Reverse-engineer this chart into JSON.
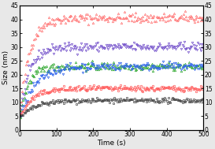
{
  "title": "",
  "xlabel": "Time (s)",
  "ylabel": "Size (nm)",
  "xlim": [
    0,
    500
  ],
  "ylim": [
    0,
    45
  ],
  "yticks": [
    0,
    5,
    10,
    15,
    20,
    25,
    30,
    35,
    40,
    45
  ],
  "xticks": [
    0,
    100,
    200,
    300,
    400,
    500
  ],
  "series": [
    {
      "color": "#FF7777",
      "marker": "^",
      "a": 36.0,
      "b": 0.04,
      "y0": 4.5,
      "noise": 0.9
    },
    {
      "color": "#7755CC",
      "marker": "v",
      "a": 26.0,
      "b": 0.04,
      "y0": 4.0,
      "noise": 0.8
    },
    {
      "color": "#33AA33",
      "marker": "^",
      "a": 19.0,
      "b": 0.045,
      "y0": 4.0,
      "noise": 0.7
    },
    {
      "color": "#3366EE",
      "marker": "v",
      "a": 19.5,
      "b": 0.025,
      "y0": 3.5,
      "noise": 0.7
    },
    {
      "color": "#FF5555",
      "marker": "o",
      "a": 10.5,
      "b": 0.03,
      "y0": 4.5,
      "noise": 0.5
    },
    {
      "color": "#444444",
      "marker": "s",
      "a": 6.5,
      "b": 0.025,
      "y0": 4.2,
      "noise": 0.4
    }
  ],
  "background_color": "#ffffff",
  "fig_bg": "#e8e8e8",
  "fig_width": 2.73,
  "fig_height": 1.89,
  "dpi": 100
}
